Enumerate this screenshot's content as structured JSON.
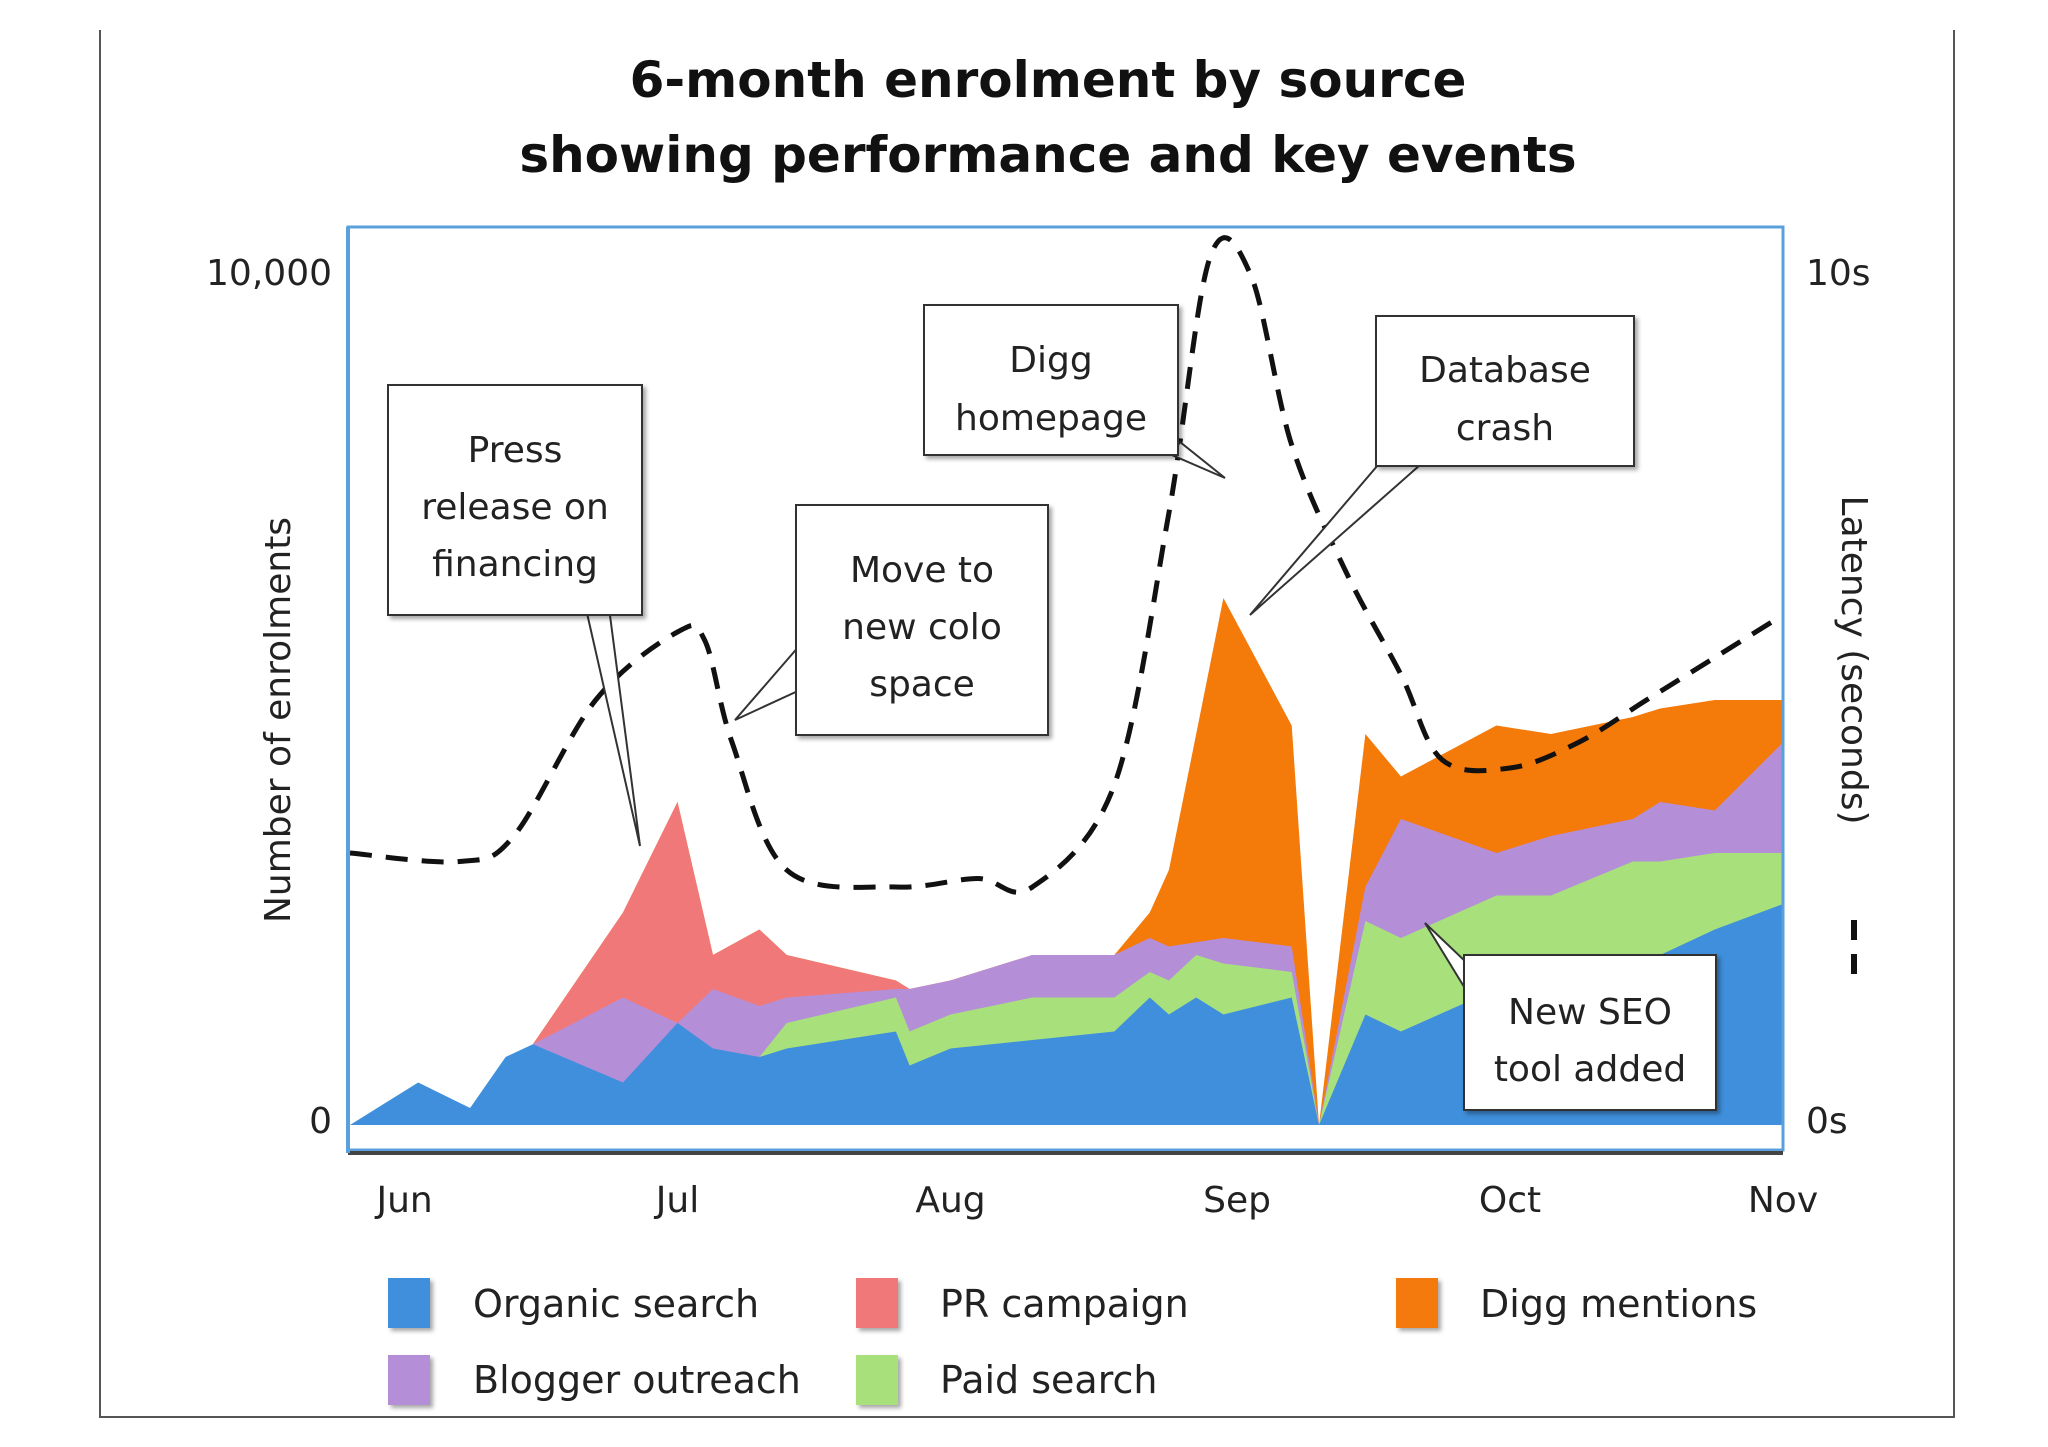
{
  "chart_data": {
    "type": "area",
    "title": [
      "6-month enrolment by source",
      "showing performance and key events"
    ],
    "ylabel": "Number of enrolments",
    "y2label": "Latency (seconds)",
    "ylim": [
      0,
      10000
    ],
    "y2lim": [
      0,
      10
    ],
    "yticks": [
      "0",
      "10,000"
    ],
    "y2ticks": [
      "0s",
      "10s"
    ],
    "xlim": [
      0,
      5.25
    ],
    "xticks": [
      {
        "label": "Jun",
        "x": 0.2
      },
      {
        "label": "Jul",
        "x": 1.2
      },
      {
        "label": "Aug",
        "x": 2.2
      },
      {
        "label": "Sep",
        "x": 3.25
      },
      {
        "label": "Oct",
        "x": 4.25
      },
      {
        "label": "Nov",
        "x": 5.25
      }
    ],
    "stack_order": [
      "Organic search",
      "Paid search",
      "Blogger outreach",
      "PR campaign",
      "Digg mentions"
    ],
    "x": [
      0,
      0.25,
      0.44,
      0.57,
      0.67,
      1.0,
      1.2,
      1.33,
      1.5,
      1.6,
      2.0,
      2.05,
      2.2,
      2.5,
      2.8,
      2.93,
      3.0,
      3.1,
      3.2,
      3.45,
      3.55,
      3.72,
      3.85,
      4.2,
      4.4,
      4.7,
      4.8,
      5.0,
      5.25
    ],
    "series": [
      {
        "name": "Organic search",
        "color": "#3f8fdc",
        "values": [
          0,
          500,
          200,
          800,
          950,
          500,
          1200,
          900,
          800,
          900,
          1100,
          700,
          900,
          1000,
          1100,
          1500,
          1300,
          1500,
          1300,
          1500,
          0,
          1300,
          1100,
          1600,
          1500,
          1800,
          2000,
          2300,
          2600
        ]
      },
      {
        "name": "Paid search",
        "color": "#a8e07c",
        "values": [
          0,
          0,
          0,
          0,
          0,
          0,
          0,
          0,
          800,
          1200,
          1500,
          1100,
          1300,
          1500,
          1500,
          1800,
          1700,
          2000,
          1900,
          1800,
          0,
          2400,
          2200,
          2700,
          2700,
          3100,
          3100,
          3200,
          3200
        ]
      },
      {
        "name": "Blogger outreach",
        "color": "#b48fd8",
        "values": [
          0,
          0,
          0,
          0,
          950,
          1500,
          1200,
          1600,
          1400,
          1500,
          1600,
          1600,
          1700,
          2000,
          2000,
          2200,
          2100,
          2150,
          2200,
          2100,
          0,
          2800,
          3600,
          3200,
          3400,
          3600,
          3800,
          3700,
          4500
        ]
      },
      {
        "name": "PR campaign",
        "color": "#f07878",
        "values": [
          0,
          0,
          0,
          0,
          950,
          2500,
          3800,
          2000,
          2300,
          2000,
          1700,
          1600,
          1700,
          2000,
          2000,
          2200,
          2100,
          2150,
          2200,
          2100,
          0,
          2800,
          3600,
          3200,
          3400,
          3600,
          3800,
          3700,
          4500
        ]
      },
      {
        "name": "Digg mentions",
        "color": "#f47a0a",
        "values": [
          0,
          0,
          0,
          0,
          950,
          2500,
          3800,
          2000,
          2300,
          2000,
          1700,
          1600,
          1700,
          2000,
          2000,
          2500,
          3000,
          4600,
          6200,
          4700,
          0,
          4600,
          4100,
          4700,
          4600,
          4800,
          4900,
          5000,
          5000
        ]
      }
    ],
    "latency": {
      "name": "Latency (seconds)",
      "x": [
        0,
        0.4,
        0.6,
        0.9,
        1.2,
        1.3,
        1.4,
        1.6,
        2.0,
        2.3,
        2.5,
        2.8,
        3.0,
        3.15,
        3.3,
        3.45,
        3.65,
        3.85,
        4.0,
        4.25,
        4.5,
        4.75,
        5.0,
        5.25
      ],
      "values": [
        3.2,
        3.1,
        3.4,
        5.0,
        5.8,
        5.7,
        4.5,
        3.0,
        2.8,
        2.9,
        2.8,
        4.0,
        7.2,
        10.2,
        10.0,
        8.0,
        6.5,
        5.3,
        4.3,
        4.2,
        4.5,
        5.0,
        5.5,
        6.0
      ]
    },
    "annotations": [
      {
        "lines": [
          "Press",
          "release on",
          "financing"
        ]
      },
      {
        "lines": [
          "Move to",
          "new colo",
          "space"
        ]
      },
      {
        "lines": [
          "Digg",
          "homepage"
        ]
      },
      {
        "lines": [
          "Database",
          "crash"
        ]
      },
      {
        "lines": [
          "New SEO",
          "tool added"
        ]
      }
    ],
    "legend_placement": "bottom",
    "legend": [
      {
        "name": "Organic search",
        "color": "#3f8fdc"
      },
      {
        "name": "PR campaign",
        "color": "#f07878"
      },
      {
        "name": "Digg mentions",
        "color": "#f47a0a"
      },
      {
        "name": "Blogger outreach",
        "color": "#b48fd8"
      },
      {
        "name": "Paid search",
        "color": "#a8e07c"
      }
    ],
    "grid": false
  }
}
